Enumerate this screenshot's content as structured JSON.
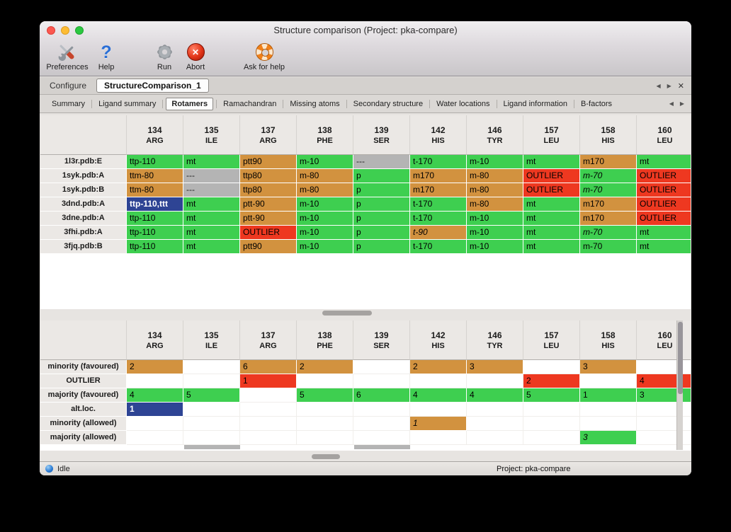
{
  "palette": {
    "green": "#3ecf50",
    "tan": "#d2923f",
    "red": "#ee3820",
    "gray": "#b4b4b4",
    "blue": "#2e4494"
  },
  "window": {
    "title": "Structure comparison (Project: pka-compare)"
  },
  "toolbar": {
    "items": [
      {
        "label": "Preferences",
        "icon": "preferences-tools-icon"
      },
      {
        "label": "Help",
        "icon": "help-question-icon"
      },
      {
        "label": "Run",
        "icon": "run-gear-icon"
      },
      {
        "label": "Abort",
        "icon": "abort-cross-icon"
      },
      {
        "label": "Ask for help",
        "icon": "lifebuoy-icon"
      }
    ]
  },
  "icons": {
    "tab_prev": "◀",
    "tab_next": "▶",
    "tab_close": "✕"
  },
  "main_tabs": [
    {
      "label": "Configure",
      "active": false
    },
    {
      "label": "StructureComparison_1",
      "active": true
    }
  ],
  "sub_tabs": [
    {
      "label": "Summary"
    },
    {
      "label": "Ligand summary"
    },
    {
      "label": "Rotamers",
      "active": true
    },
    {
      "label": "Ramachandran"
    },
    {
      "label": "Missing atoms"
    },
    {
      "label": "Secondary structure"
    },
    {
      "label": "Water locations"
    },
    {
      "label": "Ligand information"
    },
    {
      "label": "B-factors"
    }
  ],
  "columns": [
    {
      "num": "134",
      "name": "ARG"
    },
    {
      "num": "135",
      "name": "ILE"
    },
    {
      "num": "137",
      "name": "ARG"
    },
    {
      "num": "138",
      "name": "PHE"
    },
    {
      "num": "139",
      "name": "SER"
    },
    {
      "num": "142",
      "name": "HIS"
    },
    {
      "num": "146",
      "name": "TYR"
    },
    {
      "num": "157",
      "name": "LEU"
    },
    {
      "num": "158",
      "name": "HIS"
    },
    {
      "num": "160",
      "name": "LEU"
    }
  ],
  "structures_table": {
    "rows": [
      {
        "label": "1l3r.pdb:E",
        "cells": [
          {
            "t": "ttp-110",
            "c": "green"
          },
          {
            "t": "mt",
            "c": "green"
          },
          {
            "t": "ptt90",
            "c": "tan"
          },
          {
            "t": "m-10",
            "c": "green"
          },
          {
            "t": "---",
            "c": "gray"
          },
          {
            "t": "t-170",
            "c": "green"
          },
          {
            "t": "m-10",
            "c": "green"
          },
          {
            "t": "mt",
            "c": "green"
          },
          {
            "t": "m170",
            "c": "tan"
          },
          {
            "t": "mt",
            "c": "green"
          }
        ]
      },
      {
        "label": "1syk.pdb:A",
        "cells": [
          {
            "t": "ttm-80",
            "c": "tan"
          },
          {
            "t": "---",
            "c": "gray"
          },
          {
            "t": "ttp80",
            "c": "tan"
          },
          {
            "t": "m-80",
            "c": "tan"
          },
          {
            "t": "p",
            "c": "green"
          },
          {
            "t": "m170",
            "c": "tan"
          },
          {
            "t": "m-80",
            "c": "tan"
          },
          {
            "t": "OUTLIER",
            "c": "red"
          },
          {
            "t": "m-70",
            "c": "green",
            "i": true
          },
          {
            "t": "OUTLIER",
            "c": "red"
          }
        ]
      },
      {
        "label": "1syk.pdb:B",
        "cells": [
          {
            "t": "ttm-80",
            "c": "tan"
          },
          {
            "t": "---",
            "c": "gray"
          },
          {
            "t": "ttp80",
            "c": "tan"
          },
          {
            "t": "m-80",
            "c": "tan"
          },
          {
            "t": "p",
            "c": "green"
          },
          {
            "t": "m170",
            "c": "tan"
          },
          {
            "t": "m-80",
            "c": "tan"
          },
          {
            "t": "OUTLIER",
            "c": "red"
          },
          {
            "t": "m-70",
            "c": "green",
            "i": true
          },
          {
            "t": "OUTLIER",
            "c": "red"
          }
        ]
      },
      {
        "label": "3dnd.pdb:A",
        "cells": [
          {
            "t": "ttp-110,ttt",
            "c": "blue"
          },
          {
            "t": "mt",
            "c": "green"
          },
          {
            "t": "ptt-90",
            "c": "tan"
          },
          {
            "t": "m-10",
            "c": "green"
          },
          {
            "t": "p",
            "c": "green"
          },
          {
            "t": "t-170",
            "c": "green"
          },
          {
            "t": "m-80",
            "c": "tan"
          },
          {
            "t": "mt",
            "c": "green"
          },
          {
            "t": "m170",
            "c": "tan"
          },
          {
            "t": "OUTLIER",
            "c": "red"
          }
        ]
      },
      {
        "label": "3dne.pdb:A",
        "cells": [
          {
            "t": "ttp-110",
            "c": "green"
          },
          {
            "t": "mt",
            "c": "green"
          },
          {
            "t": "ptt-90",
            "c": "tan"
          },
          {
            "t": "m-10",
            "c": "green"
          },
          {
            "t": "p",
            "c": "green"
          },
          {
            "t": "t-170",
            "c": "green"
          },
          {
            "t": "m-10",
            "c": "green"
          },
          {
            "t": "mt",
            "c": "green"
          },
          {
            "t": "m170",
            "c": "tan"
          },
          {
            "t": "OUTLIER",
            "c": "red"
          }
        ]
      },
      {
        "label": "3fhi.pdb:A",
        "cells": [
          {
            "t": "ttp-110",
            "c": "green"
          },
          {
            "t": "mt",
            "c": "green"
          },
          {
            "t": "OUTLIER",
            "c": "red"
          },
          {
            "t": "m-10",
            "c": "green"
          },
          {
            "t": "p",
            "c": "green"
          },
          {
            "t": "t-90",
            "c": "tan",
            "i": true
          },
          {
            "t": "m-10",
            "c": "green"
          },
          {
            "t": "mt",
            "c": "green"
          },
          {
            "t": "m-70",
            "c": "green",
            "i": true
          },
          {
            "t": "mt",
            "c": "green"
          }
        ]
      },
      {
        "label": "3fjq.pdb:B",
        "cells": [
          {
            "t": "ttp-110",
            "c": "green"
          },
          {
            "t": "mt",
            "c": "green"
          },
          {
            "t": "ptt90",
            "c": "tan"
          },
          {
            "t": "m-10",
            "c": "green"
          },
          {
            "t": "p",
            "c": "green"
          },
          {
            "t": "t-170",
            "c": "green"
          },
          {
            "t": "m-10",
            "c": "green"
          },
          {
            "t": "mt",
            "c": "green"
          },
          {
            "t": "m-70",
            "c": "green"
          },
          {
            "t": "mt",
            "c": "green"
          }
        ]
      }
    ]
  },
  "summary_table": {
    "rows": [
      {
        "label": "minority (favoured)",
        "cells": [
          {
            "t": "2",
            "c": "tan"
          },
          {
            "t": "",
            "c": "none"
          },
          {
            "t": "6",
            "c": "tan"
          },
          {
            "t": "2",
            "c": "tan"
          },
          {
            "t": "",
            "c": "none"
          },
          {
            "t": "2",
            "c": "tan"
          },
          {
            "t": "3",
            "c": "tan"
          },
          {
            "t": "",
            "c": "none"
          },
          {
            "t": "3",
            "c": "tan"
          },
          {
            "t": "",
            "c": "none"
          }
        ]
      },
      {
        "label": "OUTLIER",
        "cells": [
          {
            "t": "",
            "c": "none"
          },
          {
            "t": "",
            "c": "none"
          },
          {
            "t": "1",
            "c": "red"
          },
          {
            "t": "",
            "c": "none"
          },
          {
            "t": "",
            "c": "none"
          },
          {
            "t": "",
            "c": "none"
          },
          {
            "t": "",
            "c": "none"
          },
          {
            "t": "2",
            "c": "red"
          },
          {
            "t": "",
            "c": "none"
          },
          {
            "t": "4",
            "c": "red"
          }
        ]
      },
      {
        "label": "majority (favoured)",
        "cells": [
          {
            "t": "4",
            "c": "green"
          },
          {
            "t": "5",
            "c": "green"
          },
          {
            "t": "",
            "c": "none"
          },
          {
            "t": "5",
            "c": "green"
          },
          {
            "t": "6",
            "c": "green"
          },
          {
            "t": "4",
            "c": "green"
          },
          {
            "t": "4",
            "c": "green"
          },
          {
            "t": "5",
            "c": "green"
          },
          {
            "t": "1",
            "c": "green"
          },
          {
            "t": "3",
            "c": "green"
          }
        ]
      },
      {
        "label": "alt.loc.",
        "cells": [
          {
            "t": "1",
            "c": "blue"
          },
          {
            "t": "",
            "c": "none"
          },
          {
            "t": "",
            "c": "none"
          },
          {
            "t": "",
            "c": "none"
          },
          {
            "t": "",
            "c": "none"
          },
          {
            "t": "",
            "c": "none"
          },
          {
            "t": "",
            "c": "none"
          },
          {
            "t": "",
            "c": "none"
          },
          {
            "t": "",
            "c": "none"
          },
          {
            "t": "",
            "c": "none"
          }
        ]
      },
      {
        "label": "minority (allowed)",
        "cells": [
          {
            "t": "",
            "c": "none"
          },
          {
            "t": "",
            "c": "none"
          },
          {
            "t": "",
            "c": "none"
          },
          {
            "t": "",
            "c": "none"
          },
          {
            "t": "",
            "c": "none"
          },
          {
            "t": "1",
            "c": "tan",
            "i": true
          },
          {
            "t": "",
            "c": "none"
          },
          {
            "t": "",
            "c": "none"
          },
          {
            "t": "",
            "c": "none"
          },
          {
            "t": "",
            "c": "none"
          }
        ]
      },
      {
        "label": "majority (allowed)",
        "cells": [
          {
            "t": "",
            "c": "none"
          },
          {
            "t": "",
            "c": "none"
          },
          {
            "t": "",
            "c": "none"
          },
          {
            "t": "",
            "c": "none"
          },
          {
            "t": "",
            "c": "none"
          },
          {
            "t": "",
            "c": "none"
          },
          {
            "t": "",
            "c": "none"
          },
          {
            "t": "",
            "c": "none"
          },
          {
            "t": "3",
            "c": "green",
            "i": true
          },
          {
            "t": "",
            "c": "none"
          }
        ]
      }
    ]
  },
  "status_bar": {
    "status": "Idle",
    "project": "Project: pka-compare"
  }
}
